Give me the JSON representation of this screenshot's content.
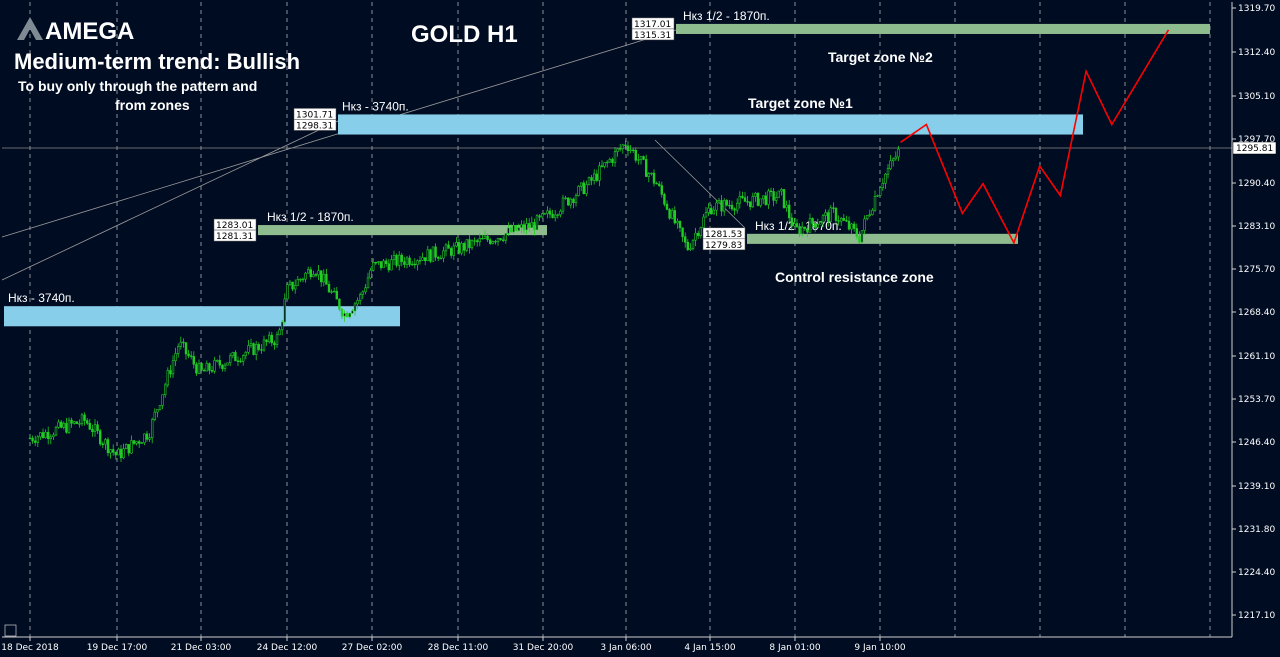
{
  "brand": {
    "logo_text": "AMEGA"
  },
  "title": "GOLD H1",
  "annotation": {
    "trend": "Medium-term trend: Bullish",
    "note_line1": "To buy only through the pattern  and",
    "note_line2": "from zones"
  },
  "zones": [
    {
      "id": "target2",
      "kind": "green",
      "label": "Нкз 1/2 - 1870п.",
      "upper": 1317.01,
      "lower": 1315.31,
      "caption": "Target zone №2",
      "x_start": "3 Jan 06:00"
    },
    {
      "id": "target1",
      "kind": "blue",
      "label": "Нкз - 3740п.",
      "upper": 1301.71,
      "lower": 1298.31,
      "caption": "Target zone №1",
      "x_start": "27 Dec 02:00"
    },
    {
      "id": "mid",
      "kind": "green",
      "label": "Нкз 1/2 - 1870п.",
      "upper": 1283.01,
      "lower": 1281.31,
      "caption": "",
      "x_start": "24 Dec 12:00"
    },
    {
      "id": "control",
      "kind": "green",
      "label": "Нкз 1/2 - 1870п.",
      "upper": 1281.53,
      "lower": 1279.83,
      "caption": "Control resistance zone",
      "x_start": "4 Jan 15:00"
    },
    {
      "id": "base",
      "kind": "blue",
      "label": "Нкз - 3740п.",
      "upper": 1269.3,
      "lower": 1265.9,
      "caption": "",
      "x_start": "18 Dec 2018"
    }
  ],
  "chart_data": {
    "type": "candlestick",
    "symbol": "GOLD",
    "timeframe": "H1",
    "title": "GOLD H1",
    "current_price": "1295.81",
    "y_axis_ticks": [
      "1319.70",
      "1312.40",
      "1305.10",
      "1297.70",
      "1290.40",
      "1283.10",
      "1275.70",
      "1268.40",
      "1261.10",
      "1253.70",
      "1246.40",
      "1239.10",
      "1231.80",
      "1224.40",
      "1217.10"
    ],
    "x_axis_ticks": [
      "18 Dec 2018",
      "19 Dec 17:00",
      "21 Dec 03:00",
      "24 Dec 12:00",
      "27 Dec 02:00",
      "28 Dec 11:00",
      "31 Dec 20:00",
      "3 Jan 06:00",
      "4 Jan 15:00",
      "8 Jan 01:00",
      "9 Jan 10:00"
    ],
    "ylim": [
      1213,
      1322
    ],
    "price_path": [
      [
        "18 Dec 2018",
        1247
      ],
      [
        "19 Dec 02:00",
        1250
      ],
      [
        "19 Dec 17:00",
        1244
      ],
      [
        "20 Dec 06:00",
        1248
      ],
      [
        "20 Dec 18:00",
        1263
      ],
      [
        "21 Dec 03:00",
        1258
      ],
      [
        "21 Dec 14:00",
        1259
      ],
      [
        "24 Dec 04:00",
        1264
      ],
      [
        "24 Dec 12:00",
        1272
      ],
      [
        "25 Dec 08:00",
        1276
      ],
      [
        "26 Dec 06:00",
        1268
      ],
      [
        "26 Dec 18:00",
        1271
      ],
      [
        "27 Dec 02:00",
        1276
      ],
      [
        "28 Dec 11:00",
        1279
      ],
      [
        "31 Dec 10:00",
        1283
      ],
      [
        "31 Dec 20:00",
        1284
      ],
      [
        "2 Jan 04:00",
        1290
      ],
      [
        "3 Jan 06:00",
        1297
      ],
      [
        "3 Jan 18:00",
        1290
      ],
      [
        "4 Jan 06:00",
        1279
      ],
      [
        "4 Jan 15:00",
        1286
      ],
      [
        "7 Jan 12:00",
        1288
      ],
      [
        "8 Jan 01:00",
        1282
      ],
      [
        "8 Jan 16:00",
        1285
      ],
      [
        "9 Jan 02:00",
        1281
      ],
      [
        "9 Jan 10:00",
        1290
      ],
      [
        "9 Jan 18:00",
        1296
      ]
    ],
    "forecast_path": [
      [
        "9 Jan 18:00",
        1297
      ],
      [
        "10 Jan 04:00",
        1300
      ],
      [
        "10 Jan 18:00",
        1285
      ],
      [
        "11 Jan 02:00",
        1290
      ],
      [
        "11 Jan 14:00",
        1280
      ],
      [
        "12 Jan 00:00",
        1293
      ],
      [
        "12 Jan 08:00",
        1288
      ],
      [
        "12 Jan 18:00",
        1309
      ],
      [
        "13 Jan 04:00",
        1300
      ],
      [
        "14 Jan 02:00",
        1316
      ]
    ],
    "colors": {
      "background": "#000c22",
      "candles": "#22cc22",
      "grid": "#cfcfcf",
      "blue_zone": "#87ceeb",
      "green_zone": "#8fbc8f",
      "forecast": "#ff0000",
      "text": "#ffffff"
    }
  }
}
